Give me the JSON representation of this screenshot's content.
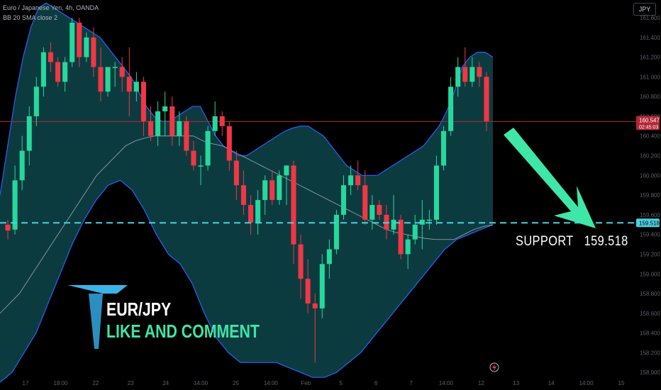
{
  "header": {
    "symbol_line": "Euro / Japanese Yen, 4h, OANDA",
    "indicator_line": "BB 20 SMA close 2"
  },
  "currency_button": "JPY",
  "annotations": {
    "support_label": "SUPPORT",
    "support_value": "159.518",
    "pair": "EUR/JPY",
    "cta": "LIKE AND COMMENT"
  },
  "colors": {
    "up": "#26d89c",
    "down": "#f23645",
    "band": "#2962ff",
    "band_fill": "#0c3b3f",
    "basis": "#b2b5be",
    "support": "#4dd0e1",
    "current": "#b22833",
    "arrow": "#3ee6a8"
  },
  "chart_data": {
    "type": "candlestick",
    "y_ticks": [
      "161.600",
      "161.400",
      "161.200",
      "161.000",
      "160.800",
      "160.600",
      "160.400",
      "160.200",
      "160.000",
      "159.800",
      "159.600",
      "159.400",
      "159.200",
      "159.000",
      "158.800",
      "158.600",
      "158.400",
      "158.200",
      "158.000"
    ],
    "ylim": [
      157.98,
      161.78
    ],
    "x_ticks": [
      "17",
      "18:00",
      "22",
      "23",
      "24",
      "14:00",
      "25",
      "14:00",
      "Feb",
      "5",
      "6",
      "7",
      "14:00",
      "12",
      "13",
      "14",
      "14:00",
      "15"
    ],
    "current_price": "160.547",
    "countdown": "02:45:03",
    "support_price": "159.518",
    "candles": [
      {
        "o": 159.5,
        "h": 159.55,
        "l": 159.35,
        "c": 159.44
      },
      {
        "o": 159.45,
        "h": 160.1,
        "l": 159.4,
        "c": 159.95
      },
      {
        "o": 159.95,
        "h": 160.4,
        "l": 159.85,
        "c": 160.25
      },
      {
        "o": 160.25,
        "h": 160.7,
        "l": 160.1,
        "c": 160.6
      },
      {
        "o": 160.6,
        "h": 161.0,
        "l": 160.5,
        "c": 160.9
      },
      {
        "o": 160.9,
        "h": 161.3,
        "l": 160.8,
        "c": 161.25
      },
      {
        "o": 161.25,
        "h": 161.35,
        "l": 161.05,
        "c": 161.15
      },
      {
        "o": 161.15,
        "h": 161.2,
        "l": 160.9,
        "c": 160.95
      },
      {
        "o": 160.95,
        "h": 161.2,
        "l": 160.85,
        "c": 161.15
      },
      {
        "o": 161.15,
        "h": 161.6,
        "l": 161.1,
        "c": 161.55
      },
      {
        "o": 161.55,
        "h": 161.6,
        "l": 161.1,
        "c": 161.2
      },
      {
        "o": 161.2,
        "h": 161.45,
        "l": 161.15,
        "c": 161.4
      },
      {
        "o": 161.4,
        "h": 161.5,
        "l": 161.0,
        "c": 161.1
      },
      {
        "o": 161.1,
        "h": 161.3,
        "l": 160.75,
        "c": 160.85
      },
      {
        "o": 160.85,
        "h": 161.1,
        "l": 160.8,
        "c": 161.1
      },
      {
        "o": 161.1,
        "h": 161.15,
        "l": 160.9,
        "c": 161.1
      },
      {
        "o": 161.1,
        "h": 161.2,
        "l": 160.85,
        "c": 161.0
      },
      {
        "o": 161.0,
        "h": 161.3,
        "l": 160.6,
        "c": 160.85
      },
      {
        "o": 160.85,
        "h": 161.05,
        "l": 160.75,
        "c": 160.95
      },
      {
        "o": 160.95,
        "h": 161.0,
        "l": 160.4,
        "c": 160.55
      },
      {
        "o": 160.55,
        "h": 160.7,
        "l": 160.35,
        "c": 160.4
      },
      {
        "o": 160.4,
        "h": 160.75,
        "l": 160.3,
        "c": 160.65
      },
      {
        "o": 160.65,
        "h": 160.85,
        "l": 160.4,
        "c": 160.7
      },
      {
        "o": 160.7,
        "h": 160.8,
        "l": 160.3,
        "c": 160.4
      },
      {
        "o": 160.4,
        "h": 160.65,
        "l": 160.3,
        "c": 160.55
      },
      {
        "o": 160.55,
        "h": 160.6,
        "l": 160.2,
        "c": 160.25
      },
      {
        "o": 160.25,
        "h": 160.35,
        "l": 160.05,
        "c": 160.1
      },
      {
        "o": 160.1,
        "h": 160.2,
        "l": 159.9,
        "c": 160.1
      },
      {
        "o": 160.1,
        "h": 160.5,
        "l": 160.05,
        "c": 160.45
      },
      {
        "o": 160.45,
        "h": 160.75,
        "l": 160.4,
        "c": 160.6
      },
      {
        "o": 160.6,
        "h": 160.65,
        "l": 160.4,
        "c": 160.5
      },
      {
        "o": 160.5,
        "h": 160.55,
        "l": 160.05,
        "c": 160.15
      },
      {
        "o": 160.15,
        "h": 160.25,
        "l": 159.75,
        "c": 159.9
      },
      {
        "o": 159.9,
        "h": 160.05,
        "l": 159.6,
        "c": 159.7
      },
      {
        "o": 159.7,
        "h": 159.8,
        "l": 159.4,
        "c": 159.52
      },
      {
        "o": 159.52,
        "h": 159.85,
        "l": 159.4,
        "c": 159.75
      },
      {
        "o": 159.75,
        "h": 160.0,
        "l": 159.6,
        "c": 159.95
      },
      {
        "o": 159.95,
        "h": 160.05,
        "l": 159.7,
        "c": 159.75
      },
      {
        "o": 159.75,
        "h": 160.05,
        "l": 159.7,
        "c": 160.0
      },
      {
        "o": 160.0,
        "h": 160.1,
        "l": 159.7,
        "c": 160.1
      },
      {
        "o": 160.1,
        "h": 160.15,
        "l": 159.1,
        "c": 159.3
      },
      {
        "o": 159.3,
        "h": 159.4,
        "l": 158.75,
        "c": 158.95
      },
      {
        "o": 158.95,
        "h": 159.15,
        "l": 158.6,
        "c": 158.7
      },
      {
        "o": 158.7,
        "h": 158.8,
        "l": 158.1,
        "c": 158.65
      },
      {
        "o": 158.65,
        "h": 159.2,
        "l": 158.55,
        "c": 159.1
      },
      {
        "o": 159.1,
        "h": 159.35,
        "l": 158.95,
        "c": 159.25
      },
      {
        "o": 159.25,
        "h": 159.65,
        "l": 159.2,
        "c": 159.6
      },
      {
        "o": 159.6,
        "h": 160.0,
        "l": 159.55,
        "c": 159.9
      },
      {
        "o": 159.9,
        "h": 160.1,
        "l": 159.8,
        "c": 160.0
      },
      {
        "o": 160.0,
        "h": 160.15,
        "l": 159.85,
        "c": 159.9
      },
      {
        "o": 159.9,
        "h": 160.05,
        "l": 159.5,
        "c": 159.55
      },
      {
        "o": 159.55,
        "h": 159.8,
        "l": 159.45,
        "c": 159.7
      },
      {
        "o": 159.7,
        "h": 159.75,
        "l": 159.55,
        "c": 159.6
      },
      {
        "o": 159.6,
        "h": 159.7,
        "l": 159.35,
        "c": 159.45
      },
      {
        "o": 159.45,
        "h": 159.8,
        "l": 159.4,
        "c": 159.55
      },
      {
        "o": 159.55,
        "h": 159.6,
        "l": 159.15,
        "c": 159.2
      },
      {
        "o": 159.2,
        "h": 159.4,
        "l": 159.05,
        "c": 159.35
      },
      {
        "o": 159.35,
        "h": 159.6,
        "l": 159.3,
        "c": 159.5
      },
      {
        "o": 159.5,
        "h": 159.75,
        "l": 159.25,
        "c": 159.55
      },
      {
        "o": 159.55,
        "h": 159.65,
        "l": 159.45,
        "c": 159.55
      },
      {
        "o": 159.55,
        "h": 160.2,
        "l": 159.5,
        "c": 160.1
      },
      {
        "o": 160.1,
        "h": 160.5,
        "l": 160.05,
        "c": 160.45
      },
      {
        "o": 160.45,
        "h": 161.0,
        "l": 160.4,
        "c": 160.9
      },
      {
        "o": 160.9,
        "h": 161.2,
        "l": 160.8,
        "c": 161.1
      },
      {
        "o": 161.1,
        "h": 161.3,
        "l": 160.9,
        "c": 160.95
      },
      {
        "o": 160.95,
        "h": 161.2,
        "l": 160.9,
        "c": 161.1
      },
      {
        "o": 161.1,
        "h": 161.15,
        "l": 160.9,
        "c": 161.0
      },
      {
        "o": 161.0,
        "h": 161.05,
        "l": 160.45,
        "c": 160.55
      }
    ],
    "bb_upper": [
      159.8,
      160.3,
      160.8,
      161.2,
      161.5,
      161.7,
      161.75,
      161.7,
      161.65,
      161.6,
      161.55,
      161.5,
      161.45,
      161.4,
      161.3,
      161.2,
      161.1,
      161.0,
      160.85,
      160.7,
      160.6,
      160.55,
      160.55,
      160.6,
      160.65,
      160.7,
      160.7,
      160.55,
      160.4,
      160.3,
      160.25,
      160.2,
      160.2,
      160.25,
      160.3,
      160.35,
      160.4,
      160.45,
      160.48,
      160.5,
      160.5,
      160.45,
      160.4,
      160.3,
      160.2,
      160.1,
      160.05,
      160.0,
      160.0,
      160.0,
      160.05,
      160.1,
      160.15,
      160.2,
      160.25,
      160.3,
      160.4,
      160.5,
      160.65,
      160.85,
      161.1,
      161.2,
      161.25,
      161.25,
      161.2
    ],
    "bb_basis": [
      158.6,
      158.7,
      158.8,
      158.95,
      159.1,
      159.25,
      159.4,
      159.55,
      159.7,
      159.85,
      160.0,
      160.1,
      160.2,
      160.3,
      160.35,
      160.38,
      160.4,
      160.4,
      160.4,
      160.4,
      160.4,
      160.35,
      160.32,
      160.3,
      160.25,
      160.2,
      160.15,
      160.1,
      160.05,
      160.0,
      159.95,
      159.9,
      159.85,
      159.8,
      159.75,
      159.7,
      159.65,
      159.6,
      159.55,
      159.5,
      159.45,
      159.42,
      159.4,
      159.38,
      159.36,
      159.35,
      159.35,
      159.35,
      159.4,
      159.45,
      159.48,
      159.5
    ],
    "bb_lower": [
      157.9,
      158.0,
      158.2,
      158.4,
      158.7,
      159.0,
      159.3,
      159.55,
      159.75,
      159.9,
      159.95,
      159.85,
      159.65,
      159.4,
      159.2,
      159.1,
      158.9,
      158.6,
      158.35,
      158.2,
      158.1,
      158.1,
      158.1,
      158.1,
      158.05,
      158.0,
      157.95,
      157.95,
      158.0,
      158.1,
      158.2,
      158.35,
      158.5,
      158.65,
      158.8,
      158.95,
      159.1,
      159.25,
      159.35,
      159.4,
      159.45,
      159.5
    ]
  }
}
